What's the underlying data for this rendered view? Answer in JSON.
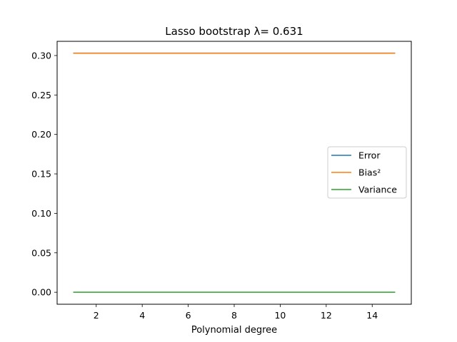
{
  "chart_data": {
    "type": "line",
    "title": "Lasso bootstrap λ= 0.631",
    "xlabel": "Polynomial degree",
    "ylabel": "",
    "x": [
      1,
      2,
      3,
      4,
      5,
      6,
      7,
      8,
      9,
      10,
      11,
      12,
      13,
      14,
      15
    ],
    "xlim": [
      0.3,
      15.7
    ],
    "ylim": [
      -0.0152,
      0.318
    ],
    "xticks": [
      2,
      4,
      6,
      8,
      10,
      12,
      14
    ],
    "xtick_labels": [
      "2",
      "4",
      "6",
      "8",
      "10",
      "12",
      "14"
    ],
    "yticks": [
      0.0,
      0.05,
      0.1,
      0.15,
      0.2,
      0.25,
      0.3
    ],
    "ytick_labels": [
      "0.00",
      "0.05",
      "0.10",
      "0.15",
      "0.20",
      "0.25",
      "0.30"
    ],
    "grid": false,
    "legend_position": "center-right",
    "series": [
      {
        "name": "Error",
        "color": "#1f77b4",
        "values": [
          0.303,
          0.303,
          0.303,
          0.303,
          0.303,
          0.303,
          0.303,
          0.303,
          0.303,
          0.303,
          0.303,
          0.303,
          0.303,
          0.303,
          0.303
        ]
      },
      {
        "name": "Bias²",
        "color": "#ff7f0e",
        "values": [
          0.303,
          0.303,
          0.303,
          0.303,
          0.303,
          0.303,
          0.303,
          0.303,
          0.303,
          0.303,
          0.303,
          0.303,
          0.303,
          0.303,
          0.303
        ]
      },
      {
        "name": "Variance",
        "color": "#2ca02c",
        "values": [
          0.0,
          0.0,
          0.0,
          0.0,
          0.0,
          0.0,
          0.0,
          0.0,
          0.0,
          0.0,
          0.0,
          0.0,
          0.0,
          0.0,
          0.0
        ]
      }
    ]
  }
}
